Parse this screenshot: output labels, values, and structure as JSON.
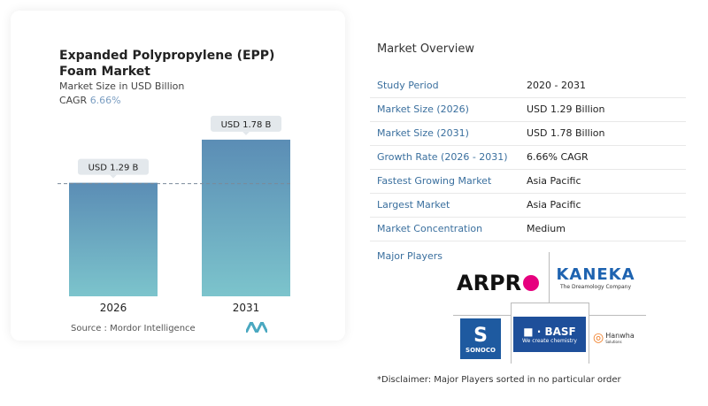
{
  "left": {
    "title": "Expanded Polypropylene (EPP) Foam Market",
    "subtitle": "Market Size in USD Billion",
    "cagr_label": "CAGR",
    "cagr_value": "6.66%",
    "source": "Source :  Mordor Intelligence"
  },
  "chart_data": {
    "type": "bar",
    "categories": [
      "2026",
      "2031"
    ],
    "values": [
      1.29,
      1.78
    ],
    "data_labels": [
      "USD 1.29 B",
      "USD 1.78 B"
    ],
    "title": "Expanded Polypropylene (EPP) Foam Market",
    "ylabel": "Market Size in USD Billion",
    "ylim": [
      0,
      1.9
    ],
    "grid": false,
    "colors": [
      "#5b8db5",
      "#7cc4cc"
    ]
  },
  "overview": {
    "title": "Market Overview",
    "rows": [
      {
        "label": "Study Period",
        "value": "2020 - 2031"
      },
      {
        "label": "Market Size (2026)",
        "value": "USD 1.29 Billion"
      },
      {
        "label": "Market Size (2031)",
        "value": "USD 1.78 Billion"
      },
      {
        "label": "Growth Rate (2026 - 2031)",
        "value": "6.66% CAGR"
      },
      {
        "label": "Fastest Growing Market",
        "value": "Asia Pacific"
      },
      {
        "label": "Largest Market",
        "value": "Asia Pacific"
      },
      {
        "label": "Market Concentration",
        "value": "Medium"
      }
    ]
  },
  "players": {
    "title": "Major Players",
    "logos": [
      "ARPRO",
      "KANEKA",
      "SONOCO",
      "BASF",
      "Hanwha Solutions"
    ],
    "kaneka_tag": "The Dreamology Company",
    "basf_tag": "We create chemistry",
    "hanwha_name": "Hanwha",
    "hanwha_sub": "Solutions",
    "arpro_text": "ARPR",
    "sonoco_text": "SONOCO",
    "basf_text": "BASF"
  },
  "disclaimer": "*Disclaimer: Major Players sorted in no particular order"
}
